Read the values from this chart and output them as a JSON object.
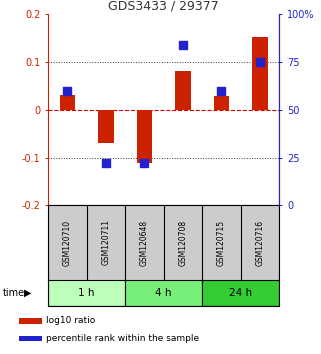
{
  "title": "GDS3433 / 29377",
  "samples": [
    "GSM120710",
    "GSM120711",
    "GSM120648",
    "GSM120708",
    "GSM120715",
    "GSM120716"
  ],
  "log10_ratio": [
    0.03,
    -0.07,
    -0.112,
    0.082,
    0.028,
    0.152
  ],
  "percentile_rank": [
    60,
    22,
    22,
    84,
    60,
    75
  ],
  "ylim_left": [
    -0.2,
    0.2
  ],
  "ylim_right": [
    0,
    100
  ],
  "yticks_left": [
    -0.2,
    -0.1,
    0.0,
    0.1,
    0.2
  ],
  "ytick_labels_left": [
    "-0.2",
    "-0.1",
    "0",
    "0.1",
    "0.2"
  ],
  "yticks_right": [
    0,
    25,
    50,
    75,
    100
  ],
  "ytick_labels_right": [
    "0",
    "25",
    "50",
    "75",
    "100%"
  ],
  "bar_color": "#cc2200",
  "dot_color": "#2222cc",
  "groups": [
    {
      "label": "1 h",
      "indices": [
        0,
        1
      ],
      "color": "#bbffbb"
    },
    {
      "label": "4 h",
      "indices": [
        2,
        3
      ],
      "color": "#77ee77"
    },
    {
      "label": "24 h",
      "indices": [
        4,
        5
      ],
      "color": "#33cc33"
    }
  ],
  "time_label": "time",
  "legend_items": [
    {
      "label": "log10 ratio",
      "color": "#cc2200"
    },
    {
      "label": "percentile rank within the sample",
      "color": "#2222cc"
    }
  ],
  "background_color": "#ffffff",
  "bar_width": 0.4,
  "dot_size": 28,
  "title_color": "#333333",
  "left_axis_color": "#cc2200",
  "right_axis_color": "#2222cc",
  "zero_line_color": "#cc0000",
  "header_bg": "#cccccc",
  "dotted_line_color": "#333333"
}
